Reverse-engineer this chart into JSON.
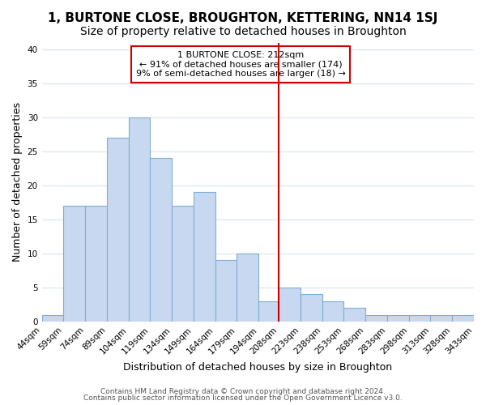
{
  "title": "1, BURTONE CLOSE, BROUGHTON, KETTERING, NN14 1SJ",
  "subtitle": "Size of property relative to detached houses in Broughton",
  "xlabel": "Distribution of detached houses by size in Broughton",
  "ylabel": "Number of detached properties",
  "bin_labels": [
    "44sqm",
    "59sqm",
    "74sqm",
    "89sqm",
    "104sqm",
    "119sqm",
    "134sqm",
    "149sqm",
    "164sqm",
    "179sqm",
    "194sqm",
    "208sqm",
    "223sqm",
    "238sqm",
    "253sqm",
    "268sqm",
    "283sqm",
    "298sqm",
    "313sqm",
    "328sqm",
    "343sqm"
  ],
  "bin_values": [
    1,
    17,
    17,
    27,
    30,
    24,
    17,
    19,
    9,
    10,
    3,
    5,
    4,
    3,
    2,
    1,
    1,
    1,
    1,
    1
  ],
  "bin_edges": [
    44,
    59,
    74,
    89,
    104,
    119,
    134,
    149,
    164,
    179,
    194,
    208,
    223,
    238,
    253,
    268,
    283,
    298,
    313,
    328,
    343
  ],
  "bar_color": "#c8d8f0",
  "bar_edgecolor": "#7bafd4",
  "vline_x": 208,
  "vline_color": "#cc0000",
  "annotation_title": "1 BURTONE CLOSE: 212sqm",
  "annotation_line1": "← 91% of detached houses are smaller (174)",
  "annotation_line2": "9% of semi-detached houses are larger (18) →",
  "annotation_box_color": "#ffffff",
  "annotation_box_edgecolor": "#cc0000",
  "ylim": [
    0,
    41
  ],
  "yticks": [
    0,
    5,
    10,
    15,
    20,
    25,
    30,
    35,
    40
  ],
  "footnote1": "Contains HM Land Registry data © Crown copyright and database right 2024.",
  "footnote2": "Contains public sector information licensed under the Open Government Licence v3.0.",
  "background_color": "#ffffff",
  "grid_color": "#d8e4f0",
  "title_fontsize": 11,
  "subtitle_fontsize": 10,
  "axis_label_fontsize": 9,
  "tick_fontsize": 7.5,
  "annotation_fontsize": 8,
  "footnote_fontsize": 6.5
}
